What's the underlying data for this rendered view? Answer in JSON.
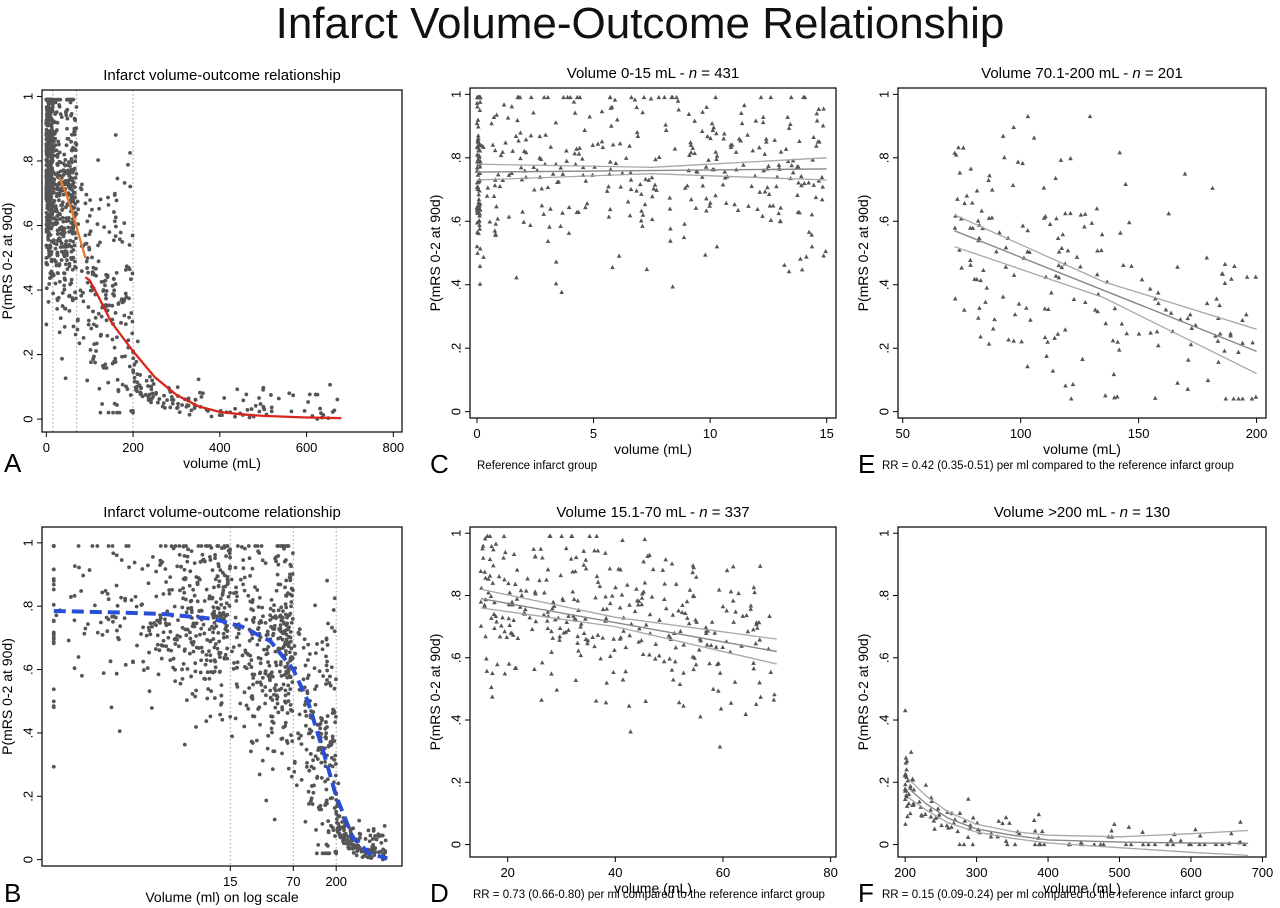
{
  "figure": {
    "title": "Infarct Volume-Outcome Relationship"
  },
  "colors": {
    "points": "#555555",
    "frame": "#000000",
    "refline": "#9a9a9a",
    "fit": "#888888",
    "ci": "#a8a8a8",
    "orange": "#e8782a",
    "red": "#d9261c",
    "blue": "#2a4fd6"
  },
  "chart_data": [
    {
      "id": "A",
      "panel_letter": "A",
      "type": "scatter",
      "title": "Infarct volume-outcome relationship",
      "xlabel": "volume (mL)",
      "ylabel": "P(mRS 0-2 at 90d)",
      "xlim": [
        -10,
        820
      ],
      "ylim": [
        -0.04,
        1.02
      ],
      "xticks": [
        0,
        200,
        400,
        600,
        800
      ],
      "xtick_labels": [
        "0",
        "200",
        "400",
        "600",
        "800"
      ],
      "yticks": [
        0,
        0.2,
        0.4,
        0.6,
        0.8,
        1
      ],
      "ytick_labels": [
        "0",
        ".2",
        ".4",
        ".6",
        ".8",
        "1"
      ],
      "reference_lines_x": [
        15,
        70,
        200
      ],
      "marker": "dot",
      "n_points": 1099,
      "curves": [
        {
          "x": [
            30,
            45,
            60,
            75,
            90
          ],
          "y": [
            0.75,
            0.7,
            0.64,
            0.57,
            0.5
          ],
          "color": "orange"
        },
        {
          "x": [
            90,
            100,
            120,
            150,
            200,
            250,
            300,
            350,
            400,
            450,
            500,
            600,
            680
          ],
          "y": [
            0.44,
            0.43,
            0.38,
            0.3,
            0.21,
            0.13,
            0.075,
            0.04,
            0.022,
            0.015,
            0.01,
            0.005,
            0.003
          ],
          "color": "red"
        }
      ]
    },
    {
      "id": "B",
      "panel_letter": "B",
      "type": "scatter",
      "title": "Infarct volume-outcome relationship",
      "xlabel": "Volume (ml) on log scale",
      "ylabel": "P(mRS 0-2 at 90d)",
      "x_scale": "log",
      "xlim": [
        0.15,
        1000
      ],
      "ylim": [
        -0.02,
        1.05
      ],
      "xticks": [
        15,
        70,
        200
      ],
      "xtick_labels": [
        "15",
        "70",
        "200"
      ],
      "yticks": [
        0,
        0.2,
        0.4,
        0.6,
        0.8,
        1
      ],
      "ytick_labels": [
        "0",
        ".2",
        ".4",
        ".6",
        ".8",
        "1"
      ],
      "reference_lines_x": [
        15,
        70,
        200
      ],
      "marker": "dot",
      "n_points": 1099,
      "curves": [
        {
          "x": [
            0.2,
            1,
            3,
            10,
            20,
            40,
            70,
            100,
            150,
            200,
            300,
            450,
            700
          ],
          "y": [
            0.785,
            0.78,
            0.775,
            0.76,
            0.735,
            0.69,
            0.6,
            0.5,
            0.33,
            0.2,
            0.07,
            0.02,
            0.004
          ],
          "color": "blue",
          "dashed": true
        }
      ]
    },
    {
      "id": "C",
      "panel_letter": "C",
      "type": "scatter",
      "title_prefix": "Volume 0-15 mL - ",
      "title_n_label": "n",
      "title_n_value": "= 431",
      "xlabel": "volume (mL)",
      "ylabel": "P(mRS 0-2 at 90d)",
      "xlim": [
        -0.3,
        15.4
      ],
      "ylim": [
        -0.02,
        1.02
      ],
      "xticks": [
        0,
        5,
        10,
        15
      ],
      "xtick_labels": [
        "0",
        "5",
        "10",
        "15"
      ],
      "yticks": [
        0,
        0.2,
        0.4,
        0.6,
        0.8,
        1
      ],
      "ytick_labels": [
        "0",
        ".2",
        ".4",
        ".6",
        ".8",
        "1"
      ],
      "marker": "triangle",
      "n_points": 431,
      "fit": {
        "x": [
          0,
          15
        ],
        "y": [
          0.755,
          0.765
        ]
      },
      "ci_upper": {
        "x": [
          0,
          7.5,
          15
        ],
        "y": [
          0.78,
          0.77,
          0.8
        ]
      },
      "ci_lower": {
        "x": [
          0,
          7.5,
          15
        ],
        "y": [
          0.73,
          0.75,
          0.73
        ]
      },
      "note": "Reference infarct group"
    },
    {
      "id": "D",
      "panel_letter": "D",
      "type": "scatter",
      "title_prefix": "Volume 15.1-70 mL - ",
      "title_n_label": "n",
      "title_n_value": "= 337",
      "xlabel": "volume (mL)",
      "ylabel": "P(mRS 0-2 at 90d)",
      "xlim": [
        13,
        81
      ],
      "ylim": [
        -0.04,
        1.02
      ],
      "xticks": [
        20,
        40,
        60,
        80
      ],
      "xtick_labels": [
        "20",
        "40",
        "60",
        "80"
      ],
      "yticks": [
        0,
        0.2,
        0.4,
        0.6,
        0.8,
        1
      ],
      "ytick_labels": [
        "0",
        ".2",
        ".4",
        ".6",
        ".8",
        "1"
      ],
      "marker": "triangle",
      "n_points": 337,
      "fit": {
        "x": [
          15,
          70
        ],
        "y": [
          0.79,
          0.62
        ]
      },
      "ci_upper": {
        "x": [
          15,
          40,
          70
        ],
        "y": [
          0.82,
          0.73,
          0.66
        ]
      },
      "ci_lower": {
        "x": [
          15,
          40,
          70
        ],
        "y": [
          0.76,
          0.7,
          0.58
        ]
      },
      "note": "RR = 0.73 (0.66-0.80) per ml compared to the reference infarct group"
    },
    {
      "id": "E",
      "panel_letter": "E",
      "type": "scatter",
      "title_prefix": "Volume 70.1-200 mL - ",
      "title_n_label": "n",
      "title_n_value": "= 201",
      "xlabel": "volume (mL)",
      "ylabel": "P(mRS 0-2 at 90d)",
      "xlim": [
        48,
        204
      ],
      "ylim": [
        -0.02,
        1.02
      ],
      "xticks": [
        50,
        100,
        150,
        200
      ],
      "xtick_labels": [
        "50",
        "100",
        "150",
        "200"
      ],
      "yticks": [
        0,
        0.2,
        0.4,
        0.6,
        0.8,
        1
      ],
      "ytick_labels": [
        "0",
        ".2",
        ".4",
        ".6",
        ".8",
        "1"
      ],
      "marker": "triangle",
      "n_points": 201,
      "fit": {
        "x": [
          72,
          200
        ],
        "y": [
          0.57,
          0.19
        ]
      },
      "ci_upper": {
        "x": [
          72,
          135,
          200
        ],
        "y": [
          0.62,
          0.41,
          0.26
        ]
      },
      "ci_lower": {
        "x": [
          72,
          135,
          200
        ],
        "y": [
          0.52,
          0.36,
          0.12
        ]
      },
      "note": "RR = 0.42 (0.35-0.51) per ml compared to the reference infarct group"
    },
    {
      "id": "F",
      "panel_letter": "F",
      "type": "scatter",
      "title_prefix": "Volume >200 mL - ",
      "title_n_label": "n",
      "title_n_value": "= 130",
      "xlabel": "volume (mL)",
      "ylabel": "P(mRS 0-2 at 90d)",
      "xlim": [
        190,
        705
      ],
      "ylim": [
        -0.04,
        1.02
      ],
      "xticks": [
        200,
        300,
        400,
        500,
        600,
        700
      ],
      "xtick_labels": [
        "200",
        "300",
        "400",
        "500",
        "600",
        "700"
      ],
      "yticks": [
        0,
        0.2,
        0.4,
        0.6,
        0.8,
        1
      ],
      "ytick_labels": [
        "0",
        ".2",
        ".4",
        ".6",
        ".8",
        "1"
      ],
      "marker": "triangle",
      "n_points": 130,
      "fit": {
        "x": [
          205,
          230,
          260,
          300,
          350,
          400,
          500,
          600,
          680
        ],
        "y": [
          0.18,
          0.13,
          0.085,
          0.05,
          0.03,
          0.015,
          0.008,
          0.005,
          0.004
        ]
      },
      "ci_upper": {
        "x": [
          205,
          230,
          260,
          300,
          350,
          400,
          500,
          600,
          680
        ],
        "y": [
          0.21,
          0.155,
          0.105,
          0.065,
          0.042,
          0.03,
          0.025,
          0.035,
          0.045
        ]
      },
      "ci_lower": {
        "x": [
          205,
          230,
          260,
          300,
          350,
          400,
          500,
          600,
          680
        ],
        "y": [
          0.15,
          0.11,
          0.07,
          0.04,
          0.02,
          0.005,
          -0.01,
          -0.025,
          -0.035
        ]
      },
      "note": "RR = 0.15 (0.09-0.24) per ml compared to the reference infarct group"
    }
  ]
}
